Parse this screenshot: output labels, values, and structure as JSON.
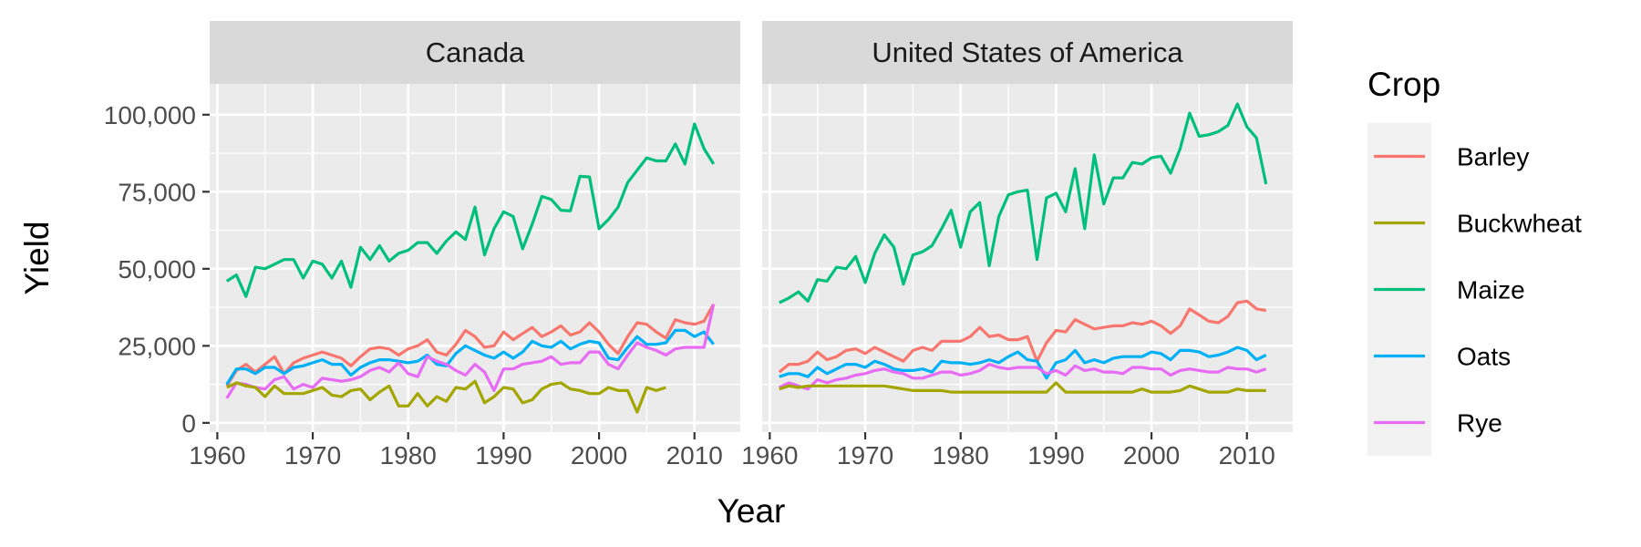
{
  "chart_data": {
    "type": "line",
    "xlabel": "Year",
    "ylabel": "Yield",
    "xlim": [
      1959.2,
      2014.8
    ],
    "ylim": [
      -3000,
      110000
    ],
    "x_ticks": [
      1960,
      1970,
      1980,
      1990,
      2000,
      2010
    ],
    "y_ticks": [
      0,
      25000,
      50000,
      75000,
      100000
    ],
    "y_tick_labels": [
      "0",
      "25,000",
      "50,000",
      "75,000",
      "100,000"
    ],
    "grid": true,
    "legend": {
      "title": "Crop",
      "position": "right"
    },
    "facets": [
      "Canada",
      "United States of America"
    ],
    "series_colors": {
      "Barley": "#F8766D",
      "Buckwheat": "#A3A500",
      "Maize": "#00BF7D",
      "Oats": "#00B0F6",
      "Rye": "#E76BF3"
    },
    "series_names": [
      "Barley",
      "Buckwheat",
      "Maize",
      "Oats",
      "Rye"
    ],
    "years": [
      1961,
      1962,
      1963,
      1964,
      1965,
      1966,
      1967,
      1968,
      1969,
      1970,
      1971,
      1972,
      1973,
      1974,
      1975,
      1976,
      1977,
      1978,
      1979,
      1980,
      1981,
      1982,
      1983,
      1984,
      1985,
      1986,
      1987,
      1988,
      1989,
      1990,
      1991,
      1992,
      1993,
      1994,
      1995,
      1996,
      1997,
      1998,
      1999,
      2000,
      2001,
      2002,
      2003,
      2004,
      2005,
      2006,
      2007,
      2008,
      2009,
      2010,
      2011,
      2012
    ],
    "panels": [
      {
        "facet": "Canada",
        "series": [
          {
            "name": "Maize",
            "values": [
              46000,
              48000,
              41000,
              50500,
              50000,
              51500,
              53000,
              53000,
              47000,
              52500,
              51500,
              47000,
              52500,
              44000,
              57000,
              53000,
              57500,
              52500,
              55000,
              56000,
              58500,
              58500,
              55000,
              59000,
              62000,
              59500,
              70000,
              54500,
              63000,
              68500,
              67000,
              56500,
              64500,
              73500,
              72500,
              69000,
              68800,
              80000,
              79800,
              63000,
              66000,
              70000,
              78000,
              82000,
              86000,
              85000,
              85000,
              90500,
              84000,
              97000,
              89000,
              84000
            ]
          },
          {
            "name": "Barley",
            "values": [
              12000,
              17000,
              19000,
              16500,
              19000,
              21500,
              16000,
              19500,
              21000,
              22000,
              23000,
              22000,
              21000,
              18500,
              21500,
              24000,
              24500,
              24000,
              22000,
              24000,
              25000,
              27000,
              23000,
              22000,
              25500,
              30000,
              28000,
              24500,
              25000,
              29500,
              27000,
              29000,
              31000,
              28000,
              29500,
              31500,
              28500,
              29500,
              32500,
              29500,
              25500,
              22500,
              28000,
              32500,
              32000,
              29500,
              27500,
              33500,
              32500,
              32000,
              33000,
              38500
            ]
          },
          {
            "name": "Oats",
            "values": [
              12500,
              17500,
              17500,
              16000,
              18000,
              18000,
              16000,
              18000,
              18500,
              19500,
              20500,
              19000,
              19000,
              15500,
              18000,
              19500,
              20500,
              20500,
              20000,
              19500,
              20000,
              22000,
              19000,
              18500,
              22500,
              25000,
              23500,
              22000,
              21000,
              23000,
              21000,
              23000,
              26500,
              25000,
              24500,
              26500,
              24000,
              25500,
              26500,
              26000,
              21000,
              20500,
              24500,
              28000,
              25500,
              25500,
              26000,
              30000,
              30000,
              28000,
              29500,
              25500
            ]
          },
          {
            "name": "Rye",
            "values": [
              8000,
              13000,
              12500,
              11500,
              11000,
              14000,
              15000,
              11000,
              12500,
              11500,
              14500,
              14000,
              13500,
              14000,
              15000,
              17000,
              18000,
              16500,
              19500,
              16000,
              15000,
              21500,
              20000,
              19000,
              17000,
              15500,
              19000,
              16500,
              10500,
              17500,
              17500,
              19000,
              19500,
              20000,
              21500,
              19000,
              19500,
              19500,
              23000,
              23000,
              19000,
              17500,
              22000,
              26000,
              24500,
              23500,
              22000,
              24000,
              24500,
              24500,
              24500,
              38500
            ]
          },
          {
            "name": "Buckwheat",
            "values": [
              11500,
              13000,
              12000,
              11500,
              8500,
              12000,
              9500,
              9500,
              9500,
              10500,
              11500,
              9000,
              8500,
              10500,
              11000,
              7500,
              10000,
              12000,
              5500,
              5500,
              9500,
              5500,
              8500,
              7000,
              11500,
              11000,
              13500,
              6500,
              8500,
              11500,
              11000,
              6500,
              7500,
              11000,
              12500,
              13000,
              11000,
              10500,
              9500,
              9500,
              11500,
              10500,
              10500,
              3500,
              11500,
              10500,
              11500,
              null,
              null,
              null,
              null,
              null
            ]
          }
        ]
      },
      {
        "facet": "United States of America",
        "series": [
          {
            "name": "Maize",
            "values": [
              39000,
              40500,
              42500,
              39500,
              46500,
              46000,
              50500,
              50000,
              54000,
              45500,
              55000,
              61000,
              57000,
              45000,
              54500,
              55500,
              57500,
              63000,
              69000,
              57000,
              68500,
              71500,
              51000,
              67000,
              74000,
              75000,
              75500,
              53000,
              73000,
              74500,
              68500,
              82500,
              63000,
              87000,
              71000,
              79500,
              79500,
              84500,
              84000,
              86000,
              86500,
              81000,
              89000,
              100500,
              93000,
              93500,
              94500,
              96500,
              103500,
              96000,
              92500,
              77500
            ]
          },
          {
            "name": "Barley",
            "values": [
              16500,
              19000,
              19000,
              20000,
              23000,
              20500,
              21500,
              23500,
              24000,
              22500,
              24500,
              23000,
              21500,
              20000,
              23500,
              24500,
              23500,
              26500,
              26500,
              26500,
              28000,
              31000,
              28000,
              28500,
              27000,
              27000,
              28000,
              20000,
              26000,
              30000,
              29500,
              33500,
              32000,
              30500,
              31000,
              31500,
              31500,
              32500,
              32000,
              33000,
              31500,
              29000,
              31500,
              37000,
              35000,
              33000,
              32500,
              34500,
              39000,
              39500,
              37000,
              36500
            ]
          },
          {
            "name": "Oats",
            "values": [
              15000,
              16000,
              16000,
              15000,
              18000,
              16000,
              17500,
              19000,
              19000,
              18000,
              20000,
              19000,
              17500,
              17000,
              17000,
              17500,
              16500,
              20000,
              19500,
              19500,
              19000,
              19500,
              20500,
              19500,
              21500,
              23000,
              20500,
              20000,
              14500,
              19500,
              20500,
              23500,
              19500,
              20500,
              19500,
              21000,
              21500,
              21500,
              21500,
              23000,
              22500,
              20500,
              23500,
              23500,
              23000,
              21500,
              22000,
              23000,
              24500,
              23500,
              20500,
              22000
            ]
          },
          {
            "name": "Rye",
            "values": [
              11500,
              13000,
              12000,
              11000,
              14000,
              13000,
              14000,
              14500,
              15500,
              16000,
              17000,
              17500,
              16500,
              16000,
              14500,
              14500,
              15500,
              16500,
              16500,
              15500,
              16000,
              17000,
              19000,
              18000,
              17500,
              18000,
              18000,
              18000,
              16000,
              17000,
              15500,
              18500,
              17000,
              17500,
              16500,
              16500,
              16000,
              18000,
              18000,
              17500,
              17500,
              15500,
              17000,
              17500,
              17000,
              16500,
              16500,
              18000,
              17500,
              17500,
              16500,
              17500
            ]
          },
          {
            "name": "Buckwheat",
            "values": [
              11000,
              12000,
              11500,
              12000,
              12000,
              12000,
              12000,
              12000,
              12000,
              12000,
              12000,
              12000,
              11500,
              11000,
              10500,
              10500,
              10500,
              10500,
              10000,
              10000,
              10000,
              10000,
              10000,
              10000,
              10000,
              10000,
              10000,
              10000,
              10000,
              13000,
              10000,
              10000,
              10000,
              10000,
              10000,
              10000,
              10000,
              10000,
              11000,
              10000,
              10000,
              10000,
              10500,
              12000,
              11000,
              10000,
              10000,
              10000,
              11000,
              10500,
              10500,
              10500
            ]
          }
        ]
      }
    ]
  }
}
